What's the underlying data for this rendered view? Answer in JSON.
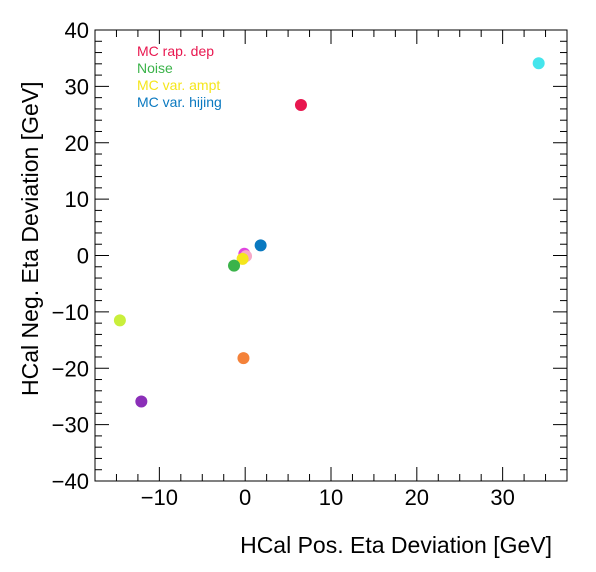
{
  "chart_data": {
    "type": "scatter",
    "xlabel": "HCal Pos. Eta Deviation [GeV]",
    "ylabel": "HCal Neg. Eta Deviation [GeV]",
    "xlim": [
      -17.5,
      37.5
    ],
    "ylim": [
      -40,
      40
    ],
    "x_ticks": [
      -10,
      0,
      10,
      20,
      30
    ],
    "x_tick_labels": [
      "−10",
      "0",
      "10",
      "20",
      "30"
    ],
    "y_ticks": [
      -40,
      -30,
      -20,
      -10,
      0,
      10,
      20,
      30,
      40
    ],
    "y_tick_labels": [
      "−40",
      "−30",
      "−20",
      "−10",
      "0",
      "10",
      "20",
      "30",
      "40"
    ],
    "legend_placement": "top-left",
    "legend": [
      {
        "label": "MC rap. dep",
        "color": "#e8174f"
      },
      {
        "label": "Noise",
        "color": "#3bb34a"
      },
      {
        "label": "MC var. ampt",
        "color": "#f5e61c"
      },
      {
        "label": "MC var. hijing",
        "color": "#0a79c0"
      }
    ],
    "points": [
      {
        "x": 34.2,
        "y": 34.1,
        "color": "#45e5ec"
      },
      {
        "x": 6.5,
        "y": 26.7,
        "color": "#e8174f"
      },
      {
        "x": 1.8,
        "y": 1.8,
        "color": "#0a79c0"
      },
      {
        "x": -0.1,
        "y": 0.3,
        "color": "#e045e0"
      },
      {
        "x": 0.1,
        "y": -0.1,
        "color": "#f6a8c8"
      },
      {
        "x": -0.3,
        "y": -0.6,
        "color": "#f5e61c"
      },
      {
        "x": -1.3,
        "y": -1.8,
        "color": "#3bb34a"
      },
      {
        "x": -14.6,
        "y": -11.5,
        "color": "#c9ef3b"
      },
      {
        "x": -0.2,
        "y": -18.2,
        "color": "#f4823a"
      },
      {
        "x": -12.1,
        "y": -25.9,
        "color": "#8b2fb8"
      }
    ]
  }
}
